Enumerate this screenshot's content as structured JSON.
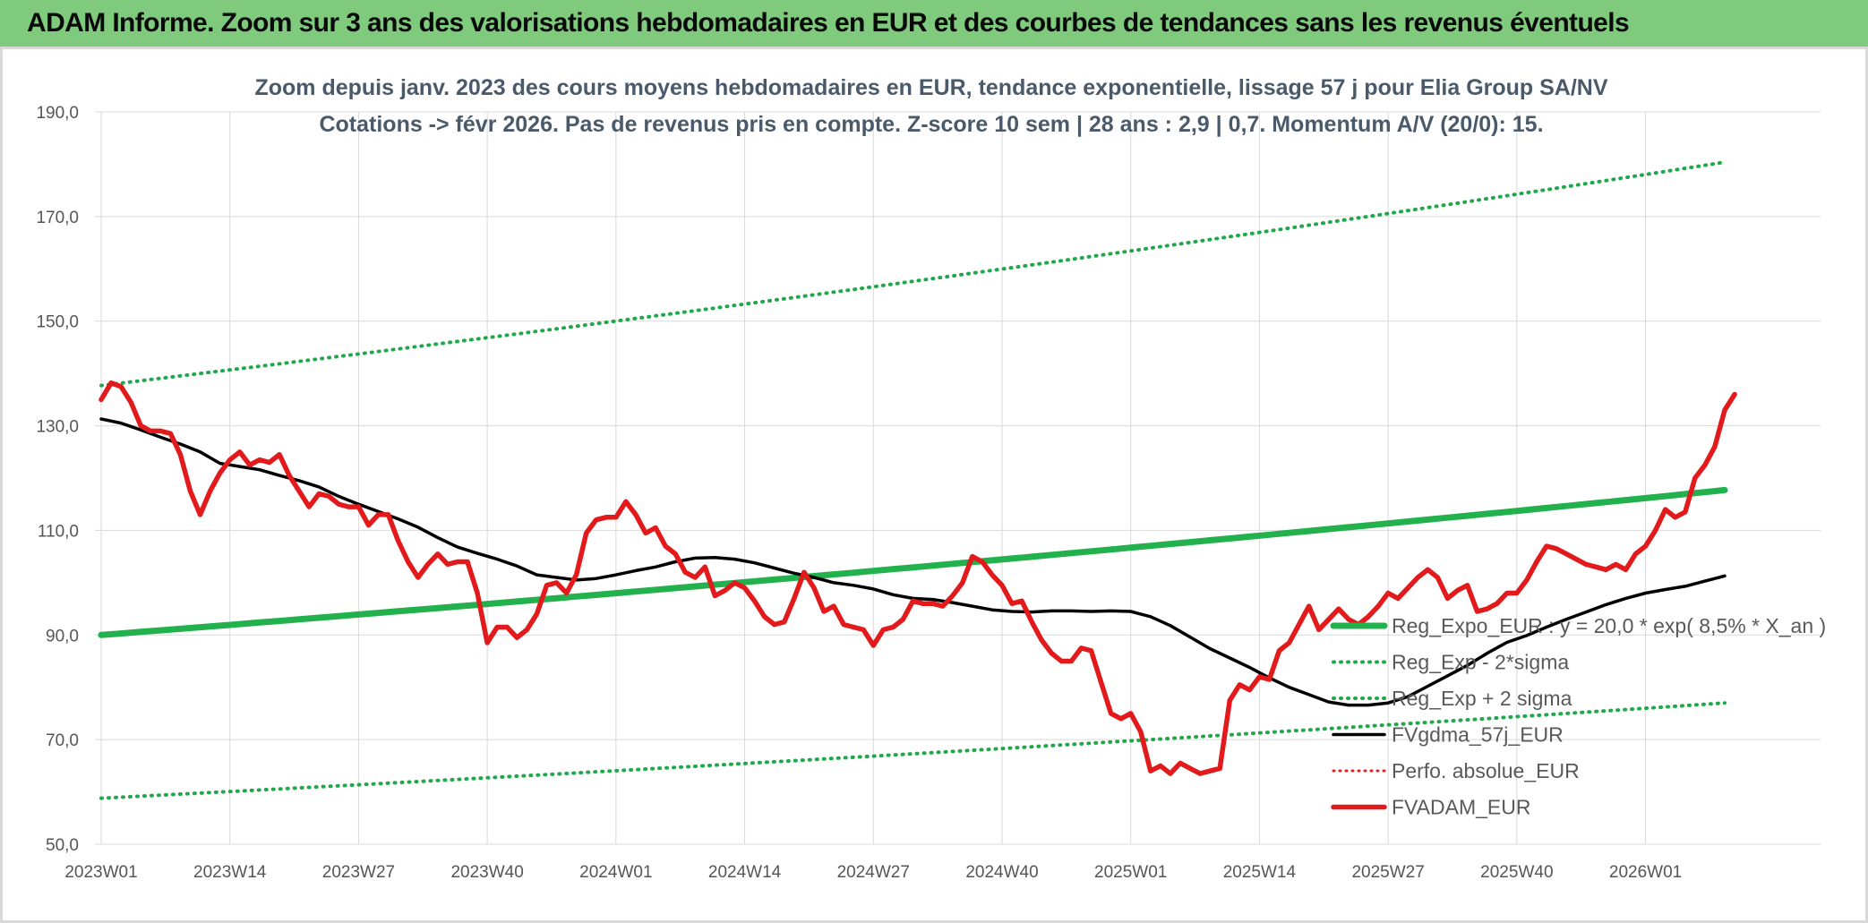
{
  "banner": {
    "text": "ADAM Informe. Zoom sur 3 ans des valorisations hebdomadaires en EUR et des courbes de tendances sans les revenus éventuels"
  },
  "colors": {
    "banner_bg": "#7fca7d",
    "reg_expo": "#22b14c",
    "sigma_lines": "#1fa84a",
    "fvgdma": "#000000",
    "perfo": "#e02020",
    "fvadam": "#e31a1c",
    "grid": "#d9d9d9"
  },
  "chart_data": {
    "type": "line",
    "title": "Zoom depuis janv. 2023 des cours moyens hebdomadaires en EUR, tendance exponentielle, lissage 57 j pour Elia Group SA/NV",
    "subtitle": "Cotations -> févr 2026. Pas de revenus pris en compte. Z-score 10 sem | 28 ans : 2,9 | 0,7. Momentum A/V (20/0): 15.",
    "xlabel": "",
    "ylabel": "",
    "ylim": [
      50,
      190
    ],
    "yticks": [
      "50,0",
      "70,0",
      "90,0",
      "110,0",
      "130,0",
      "150,0",
      "170,0",
      "190,0"
    ],
    "x_tick_labels": [
      "2023W01",
      "2023W14",
      "2023W27",
      "2023W40",
      "2024W01",
      "2024W14",
      "2024W27",
      "2024W40",
      "2025W01",
      "2025W14",
      "2025W27",
      "2025W40",
      "2026W01"
    ],
    "x_week_range": [
      0,
      164
    ],
    "grid": true,
    "legend_position": "right",
    "series": [
      {
        "name": "Reg_Expo_EUR : y = 20,0 * exp( 8,5% *  X_an )",
        "style": "solid-thick",
        "points": [
          [
            0,
            90.0
          ],
          [
            164,
            117.7
          ]
        ]
      },
      {
        "name": "Reg_Exp - 2*sigma",
        "style": "dotted",
        "points": [
          [
            0,
            58.8
          ],
          [
            164,
            77.0
          ]
        ]
      },
      {
        "name": "Reg_Exp + 2 sigma",
        "style": "dotted",
        "points": [
          [
            0,
            137.7
          ],
          [
            164,
            180.4
          ]
        ]
      },
      {
        "name": "FVgdma_57j_EUR",
        "style": "solid",
        "points": [
          [
            0,
            131.3
          ],
          [
            2,
            130.5
          ],
          [
            4,
            129.2
          ],
          [
            6,
            127.8
          ],
          [
            8,
            126.5
          ],
          [
            10,
            125
          ],
          [
            12,
            122.8
          ],
          [
            14,
            122.2
          ],
          [
            16,
            121.6
          ],
          [
            18,
            120.5
          ],
          [
            20,
            119.5
          ],
          [
            22,
            118.3
          ],
          [
            24,
            116.5
          ],
          [
            26,
            115
          ],
          [
            28,
            113.6
          ],
          [
            30,
            112.2
          ],
          [
            32,
            110.6
          ],
          [
            34,
            108.6
          ],
          [
            36,
            106.8
          ],
          [
            38,
            105.6
          ],
          [
            40,
            104.5
          ],
          [
            42,
            103.2
          ],
          [
            44,
            101.5
          ],
          [
            46,
            101
          ],
          [
            48,
            100.5
          ],
          [
            50,
            100.8
          ],
          [
            52,
            101.5
          ],
          [
            54,
            102.3
          ],
          [
            56,
            103
          ],
          [
            58,
            104
          ],
          [
            60,
            104.7
          ],
          [
            62,
            104.8
          ],
          [
            64,
            104.5
          ],
          [
            66,
            103.8
          ],
          [
            68,
            102.8
          ],
          [
            70,
            101.8
          ],
          [
            72,
            101
          ],
          [
            74,
            100
          ],
          [
            76,
            99.5
          ],
          [
            78,
            98.8
          ],
          [
            80,
            97.7
          ],
          [
            82,
            97
          ],
          [
            84,
            96.8
          ],
          [
            86,
            96.2
          ],
          [
            88,
            95.5
          ],
          [
            90,
            94.8
          ],
          [
            92,
            94.5
          ],
          [
            94,
            94.4
          ],
          [
            96,
            94.6
          ],
          [
            98,
            94.6
          ],
          [
            100,
            94.5
          ],
          [
            102,
            94.6
          ],
          [
            104,
            94.5
          ],
          [
            106,
            93.5
          ],
          [
            108,
            91.8
          ],
          [
            110,
            89.6
          ],
          [
            112,
            87.4
          ],
          [
            114,
            85.6
          ],
          [
            116,
            83.8
          ],
          [
            118,
            81.8
          ],
          [
            120,
            80
          ],
          [
            122,
            78.6
          ],
          [
            124,
            77.2
          ],
          [
            126,
            76.6
          ],
          [
            128,
            76.6
          ],
          [
            130,
            77
          ],
          [
            132,
            78.2
          ],
          [
            134,
            80.2
          ],
          [
            136,
            82.2
          ],
          [
            138,
            84.2
          ],
          [
            140,
            86.5
          ],
          [
            142,
            88.6
          ],
          [
            144,
            89.9
          ],
          [
            146,
            91.5
          ],
          [
            148,
            93
          ],
          [
            150,
            94.4
          ],
          [
            152,
            95.8
          ],
          [
            154,
            97
          ],
          [
            156,
            98
          ],
          [
            158,
            98.7
          ],
          [
            160,
            99.3
          ],
          [
            162,
            100.3
          ],
          [
            164,
            101.3
          ]
        ]
      },
      {
        "name": "Perfo. absolue_EUR",
        "style": "dotted",
        "points": []
      },
      {
        "name": "FVADAM_EUR",
        "style": "solid-thick",
        "points": [
          [
            0,
            135
          ],
          [
            1,
            138.2
          ],
          [
            2,
            137.5
          ],
          [
            3,
            134.5
          ],
          [
            4,
            130
          ],
          [
            5,
            129
          ],
          [
            6,
            129
          ],
          [
            7,
            128.5
          ],
          [
            8,
            124.5
          ],
          [
            9,
            117.5
          ],
          [
            10,
            113
          ],
          [
            11,
            117.5
          ],
          [
            12,
            121
          ],
          [
            13,
            123.5
          ],
          [
            14,
            125
          ],
          [
            15,
            122.5
          ],
          [
            16,
            123.5
          ],
          [
            17,
            123
          ],
          [
            18,
            124.5
          ],
          [
            19,
            120.5
          ],
          [
            20,
            117.5
          ],
          [
            21,
            114.5
          ],
          [
            22,
            117
          ],
          [
            23,
            116.5
          ],
          [
            24,
            115
          ],
          [
            25,
            114.5
          ],
          [
            26,
            114.5
          ],
          [
            27,
            111
          ],
          [
            28,
            113
          ],
          [
            29,
            113
          ],
          [
            30,
            108
          ],
          [
            31,
            104
          ],
          [
            32,
            101
          ],
          [
            33,
            103.5
          ],
          [
            34,
            105.5
          ],
          [
            35,
            103.5
          ],
          [
            36,
            104
          ],
          [
            37,
            104
          ],
          [
            38,
            98
          ],
          [
            39,
            88.5
          ],
          [
            40,
            91.5
          ],
          [
            41,
            91.5
          ],
          [
            42,
            89.5
          ],
          [
            43,
            91
          ],
          [
            44,
            94
          ],
          [
            45,
            99.5
          ],
          [
            46,
            100
          ],
          [
            47,
            98
          ],
          [
            48,
            101.5
          ],
          [
            49,
            109.5
          ],
          [
            50,
            112
          ],
          [
            51,
            112.5
          ],
          [
            52,
            112.5
          ],
          [
            53,
            115.5
          ],
          [
            54,
            113
          ],
          [
            55,
            109.5
          ],
          [
            56,
            110.5
          ],
          [
            57,
            107
          ],
          [
            58,
            105.5
          ],
          [
            59,
            102
          ],
          [
            60,
            101
          ],
          [
            61,
            103
          ],
          [
            62,
            97.5
          ],
          [
            63,
            98.5
          ],
          [
            64,
            100
          ],
          [
            65,
            99
          ],
          [
            66,
            96.5
          ],
          [
            67,
            93.5
          ],
          [
            68,
            92
          ],
          [
            69,
            92.5
          ],
          [
            70,
            97
          ],
          [
            71,
            102
          ],
          [
            72,
            99
          ],
          [
            73,
            94.5
          ],
          [
            74,
            95.5
          ],
          [
            75,
            92
          ],
          [
            76,
            91.5
          ],
          [
            77,
            91
          ],
          [
            78,
            88
          ],
          [
            79,
            91
          ],
          [
            80,
            91.5
          ],
          [
            81,
            93
          ],
          [
            82,
            96.5
          ],
          [
            83,
            96
          ],
          [
            84,
            96
          ],
          [
            85,
            95.5
          ],
          [
            86,
            97.5
          ],
          [
            87,
            100
          ],
          [
            88,
            105
          ],
          [
            89,
            104
          ],
          [
            90,
            101.5
          ],
          [
            91,
            99.5
          ],
          [
            92,
            96
          ],
          [
            93,
            96.5
          ],
          [
            94,
            92.5
          ],
          [
            95,
            89
          ],
          [
            96,
            86.5
          ],
          [
            97,
            85
          ],
          [
            98,
            85
          ],
          [
            99,
            87.5
          ],
          [
            100,
            87
          ],
          [
            101,
            81
          ],
          [
            102,
            75
          ],
          [
            103,
            74
          ],
          [
            104,
            75
          ],
          [
            105,
            71.5
          ],
          [
            106,
            64
          ],
          [
            107,
            65
          ],
          [
            108,
            63.5
          ],
          [
            109,
            65.5
          ],
          [
            110,
            64.5
          ],
          [
            111,
            63.5
          ],
          [
            112,
            64
          ],
          [
            113,
            64.5
          ],
          [
            114,
            77.5
          ],
          [
            115,
            80.5
          ],
          [
            116,
            79.5
          ],
          [
            117,
            82
          ],
          [
            118,
            81.5
          ],
          [
            119,
            87
          ],
          [
            120,
            88.5
          ],
          [
            121,
            92
          ],
          [
            122,
            95.5
          ],
          [
            123,
            91
          ],
          [
            124,
            93
          ],
          [
            125,
            95
          ],
          [
            126,
            93
          ],
          [
            127,
            92
          ],
          [
            128,
            93.5
          ],
          [
            129,
            95.5
          ],
          [
            130,
            98
          ],
          [
            131,
            97
          ],
          [
            132,
            99
          ],
          [
            133,
            101
          ],
          [
            134,
            102.5
          ],
          [
            135,
            101
          ],
          [
            136,
            97
          ],
          [
            137,
            98.5
          ],
          [
            138,
            99.5
          ],
          [
            139,
            94.5
          ],
          [
            140,
            95
          ],
          [
            141,
            96
          ],
          [
            142,
            98
          ],
          [
            143,
            98
          ],
          [
            144,
            100.5
          ],
          [
            145,
            104
          ],
          [
            146,
            107
          ],
          [
            147,
            106.5
          ],
          [
            148,
            105.5
          ],
          [
            149,
            104.5
          ],
          [
            150,
            103.5
          ],
          [
            151,
            103
          ],
          [
            152,
            102.5
          ],
          [
            153,
            103.5
          ],
          [
            154,
            102.5
          ],
          [
            155,
            105.5
          ],
          [
            156,
            107
          ],
          [
            157,
            110
          ],
          [
            158,
            114
          ],
          [
            159,
            112.5
          ],
          [
            160,
            113.5
          ],
          [
            161,
            120
          ],
          [
            162,
            122.5
          ],
          [
            163,
            126
          ],
          [
            164,
            133
          ],
          [
            165,
            136
          ]
        ]
      }
    ]
  }
}
